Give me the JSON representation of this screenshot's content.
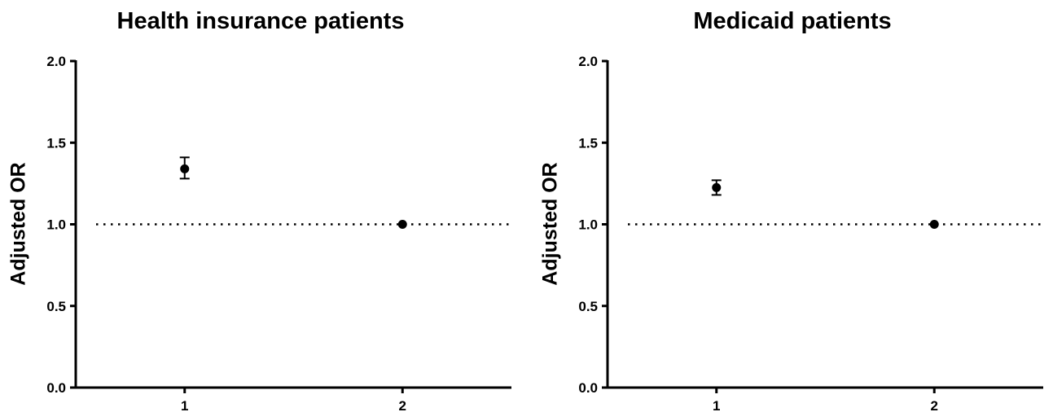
{
  "chart_data": [
    {
      "type": "scatter",
      "title": "Health insurance patients",
      "xlabel": "",
      "ylabel": "Adjusted OR",
      "categories": [
        "1",
        "2"
      ],
      "xlim": [
        0.5,
        2.5
      ],
      "ylim": [
        0.0,
        2.0
      ],
      "yticks": [
        "0.0",
        "0.5",
        "1.0",
        "1.5",
        "2.0"
      ],
      "reference_line": {
        "y": 1.0,
        "style": "dotted"
      },
      "series": [
        {
          "values": [
            1.34,
            1.0
          ],
          "lower": [
            1.28,
            1.0
          ],
          "upper": [
            1.41,
            1.0
          ]
        }
      ],
      "grid": false
    },
    {
      "type": "scatter",
      "title": "Medicaid patients",
      "xlabel": "",
      "ylabel": "Adjusted OR",
      "categories": [
        "1",
        "2"
      ],
      "xlim": [
        0.5,
        2.5
      ],
      "ylim": [
        0.0,
        2.0
      ],
      "yticks": [
        "0.0",
        "0.5",
        "1.0",
        "1.5",
        "2.0"
      ],
      "reference_line": {
        "y": 1.0,
        "style": "dotted"
      },
      "series": [
        {
          "values": [
            1.225,
            1.0
          ],
          "lower": [
            1.18,
            1.0
          ],
          "upper": [
            1.27,
            1.0
          ]
        }
      ],
      "grid": false
    }
  ]
}
